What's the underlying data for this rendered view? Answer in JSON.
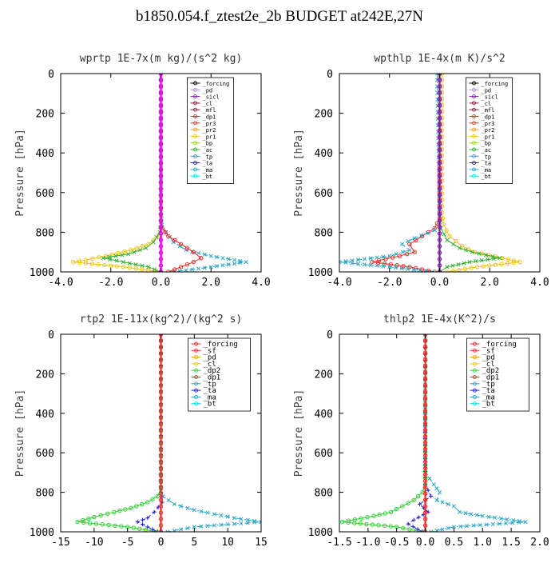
{
  "figure": {
    "title": "b1850.054.f_ztest2e_2b  BUDGET at242E,27N"
  },
  "chart_data": [
    {
      "type": "line",
      "title": "wprtp  1E-7x(m kg)/(s^2 kg)",
      "ylabel": "Pressure [hPa]",
      "xlim": [
        -4.0,
        4.0
      ],
      "ylim": [
        1000,
        0
      ],
      "xticks": [
        "-4.0",
        "-2.0",
        "0.0",
        "2.0",
        "4.0"
      ],
      "yticks": [
        "0",
        "200",
        "400",
        "600",
        "800",
        "1000"
      ],
      "legend_position": "top-right",
      "legend": [
        "_forcing",
        "_pd",
        "_sicl",
        "_cl",
        "_mfl",
        "_dp1",
        "_pr3",
        "_pr2",
        "_pr1",
        "_bp",
        "_ac",
        "_tp",
        "_ta",
        "_ma",
        "_bt"
      ],
      "series": [
        {
          "name": "_tp",
          "color": "#2aa6c8",
          "style": "dashdot",
          "marker": "x",
          "x": [
            0,
            0,
            0.05,
            0.2,
            0.5,
            1.0,
            2.0,
            3.4,
            2.0,
            0.5
          ],
          "y": [
            0,
            700,
            760,
            800,
            850,
            890,
            920,
            950,
            975,
            1000
          ]
        },
        {
          "name": "_dp1",
          "color": "#e6312a",
          "style": "solid",
          "marker": "o",
          "x": [
            0,
            0,
            0.05,
            0.3,
            0.8,
            1.3,
            1.6,
            1.3,
            0.8,
            0.3
          ],
          "y": [
            0,
            740,
            780,
            820,
            860,
            900,
            930,
            950,
            975,
            1000
          ]
        },
        {
          "name": "_pr1",
          "color": "#f0c419",
          "style": "solid",
          "marker": "o",
          "x": [
            0,
            0,
            -0.1,
            -0.5,
            -1.2,
            -2.2,
            -3.0,
            -3.5,
            -1.5,
            0
          ],
          "y": [
            0,
            780,
            820,
            860,
            890,
            920,
            940,
            950,
            975,
            1000
          ]
        },
        {
          "name": "_ac",
          "color": "#35b035",
          "style": "solid",
          "marker": "x",
          "x": [
            0,
            0,
            -0.05,
            -0.3,
            -0.6,
            -1.3,
            -2.3,
            -1.5,
            -0.5,
            0
          ],
          "y": [
            0,
            750,
            800,
            850,
            880,
            910,
            930,
            950,
            975,
            1000
          ]
        },
        {
          "name": "_forcing",
          "color": "#000000",
          "style": "solid",
          "marker": "o",
          "x": [
            0,
            0
          ],
          "y": [
            0,
            1000
          ]
        },
        {
          "name": "_bt",
          "color": "#ff00ff",
          "style": "solid",
          "marker": "o",
          "x": [
            0,
            0
          ],
          "y": [
            0,
            1000
          ]
        }
      ]
    },
    {
      "type": "line",
      "title": "wpthlp  1E-4x(m K)/s^2",
      "ylabel": "Pressure [hPa]",
      "xlim": [
        -4.0,
        4.0
      ],
      "ylim": [
        1000,
        0
      ],
      "xticks": [
        "-4.0",
        "-2.0",
        "0.0",
        "2.0",
        "4.0"
      ],
      "yticks": [
        "0",
        "200",
        "400",
        "600",
        "800",
        "1000"
      ],
      "legend_position": "top-right",
      "legend": [
        "_forcing",
        "_pd",
        "_sicl",
        "_cl",
        "_mfl",
        "_dp1",
        "_pr3",
        "_pr2",
        "_pr1",
        "_bp",
        "_ac",
        "_tp",
        "_ta",
        "_ma",
        "_bt"
      ],
      "series": [
        {
          "name": "_pr1",
          "color": "#f0c419",
          "style": "solid",
          "marker": "o",
          "x": [
            0.1,
            0.1,
            0.15,
            0.4,
            0.9,
            1.4,
            2.5,
            3.2,
            1.5,
            0.3
          ],
          "y": [
            0,
            700,
            760,
            820,
            870,
            900,
            930,
            950,
            975,
            1000
          ]
        },
        {
          "name": "_ac",
          "color": "#35b035",
          "style": "solid",
          "marker": "x",
          "x": [
            0,
            0,
            0.05,
            0.3,
            0.8,
            1.3,
            2.4,
            1.2,
            0.3,
            0
          ],
          "y": [
            0,
            740,
            780,
            840,
            880,
            900,
            930,
            950,
            975,
            1000
          ]
        },
        {
          "name": "_dp1",
          "color": "#e6312a",
          "style": "solid",
          "marker": "o",
          "x": [
            0,
            0,
            -0.2,
            -0.7,
            -1.2,
            -1.0,
            -1.6,
            -2.7,
            -1.2,
            -0.2
          ],
          "y": [
            0,
            730,
            780,
            820,
            860,
            900,
            920,
            950,
            975,
            1000
          ]
        },
        {
          "name": "_tp",
          "color": "#2aa6c8",
          "style": "dashdot",
          "marker": "x",
          "x": [
            -0.1,
            0,
            -0.2,
            -1.0,
            -1.5,
            -1.2,
            -2.0,
            -4.0,
            -2.0,
            -0.3
          ],
          "y": [
            0,
            750,
            790,
            830,
            860,
            890,
            920,
            950,
            975,
            1000
          ]
        },
        {
          "name": "_pd",
          "color": "#b38fd6",
          "style": "solid",
          "marker": "o",
          "x": [
            0,
            0
          ],
          "y": [
            0,
            1000
          ]
        },
        {
          "name": "_sicl",
          "color": "#7a1fa2",
          "style": "solid",
          "marker": "o",
          "x": [
            0,
            0
          ],
          "y": [
            0,
            1000
          ]
        }
      ]
    },
    {
      "type": "line",
      "title": "rtp2  1E-11x(kg^2)/(kg^2 s)",
      "ylabel": "Pressure [hPa]",
      "xlim": [
        -15,
        15
      ],
      "ylim": [
        1000,
        0
      ],
      "xticks": [
        "-15",
        "-10",
        "-5",
        "0",
        "5",
        "10",
        "15"
      ],
      "yticks": [
        "0",
        "200",
        "400",
        "600",
        "800",
        "1000"
      ],
      "legend_position": "top-right",
      "legend": [
        "_forcing",
        "_sf",
        "_pd",
        "_cl",
        "_dp2",
        "_dp1",
        "_tp",
        "_ta",
        "_ma",
        "_bt"
      ],
      "series": [
        {
          "name": "_tp",
          "color": "#2aa6c8",
          "style": "dashdot",
          "marker": "x",
          "x": [
            0,
            0,
            0.3,
            2.0,
            5.0,
            8.0,
            11.0,
            15.0,
            5.0,
            1.0
          ],
          "y": [
            0,
            780,
            820,
            860,
            890,
            910,
            930,
            950,
            975,
            1000
          ]
        },
        {
          "name": "_dp1",
          "color": "#35d035",
          "style": "solid",
          "marker": "o",
          "x": [
            0,
            0,
            -0.5,
            -2.0,
            -4.5,
            -7.0,
            -10.0,
            -12.5,
            -5.0,
            -0.5
          ],
          "y": [
            0,
            780,
            820,
            850,
            880,
            900,
            925,
            950,
            975,
            1000
          ]
        },
        {
          "name": "_ta",
          "color": "#1f1fd6",
          "style": "dashed",
          "marker": "+",
          "x": [
            0,
            0,
            0.2,
            -1.0,
            -2.0,
            -3.5,
            -2.0,
            -0.5
          ],
          "y": [
            0,
            800,
            850,
            900,
            930,
            950,
            975,
            1000
          ]
        },
        {
          "name": "_forcing",
          "color": "#e6312a",
          "style": "solid",
          "marker": "o",
          "x": [
            0,
            0
          ],
          "y": [
            0,
            1000
          ]
        }
      ]
    },
    {
      "type": "line",
      "title": "thlp2  1E-4x(K^2)/s",
      "ylabel": "Pressure [hPa]",
      "xlim": [
        -1.5,
        2.0
      ],
      "ylim": [
        1000,
        0
      ],
      "xticks": [
        "-1.5",
        "-1.0",
        "-0.5",
        "0.0",
        "0.5",
        "1.0",
        "1.5",
        "2.0"
      ],
      "yticks": [
        "0",
        "200",
        "400",
        "600",
        "800",
        "1000"
      ],
      "legend_position": "top-right",
      "legend": [
        "_forcing",
        "_sf",
        "_pd",
        "_cl",
        "_dp2",
        "_dp1",
        "_tp",
        "_ta",
        "_ma",
        "_bt"
      ],
      "series": [
        {
          "name": "_tp",
          "color": "#2aa6c8",
          "style": "dashdot",
          "marker": "x",
          "x": [
            0,
            0,
            0.15,
            0.25,
            0.2,
            0.5,
            0.6,
            1.0,
            1.75,
            0.5,
            0.1
          ],
          "y": [
            0,
            700,
            760,
            800,
            840,
            870,
            900,
            920,
            950,
            975,
            1000
          ]
        },
        {
          "name": "_dp1",
          "color": "#35d035",
          "style": "solid",
          "marker": "o",
          "x": [
            0,
            0,
            -0.05,
            -0.2,
            -0.4,
            -0.6,
            -0.9,
            -1.45,
            -0.5,
            -0.05
          ],
          "y": [
            0,
            760,
            800,
            840,
            870,
            900,
            920,
            950,
            975,
            1000
          ]
        },
        {
          "name": "_ta",
          "color": "#1f1fd6",
          "style": "dashed",
          "marker": "+",
          "x": [
            0,
            0,
            0.1,
            -0.1,
            0.05,
            -0.2,
            -0.3,
            -0.05
          ],
          "y": [
            0,
            760,
            820,
            860,
            900,
            940,
            960,
            1000
          ]
        },
        {
          "name": "_forcing",
          "color": "#e6312a",
          "style": "solid",
          "marker": "o",
          "x": [
            0,
            0
          ],
          "y": [
            0,
            1000
          ]
        }
      ]
    }
  ]
}
